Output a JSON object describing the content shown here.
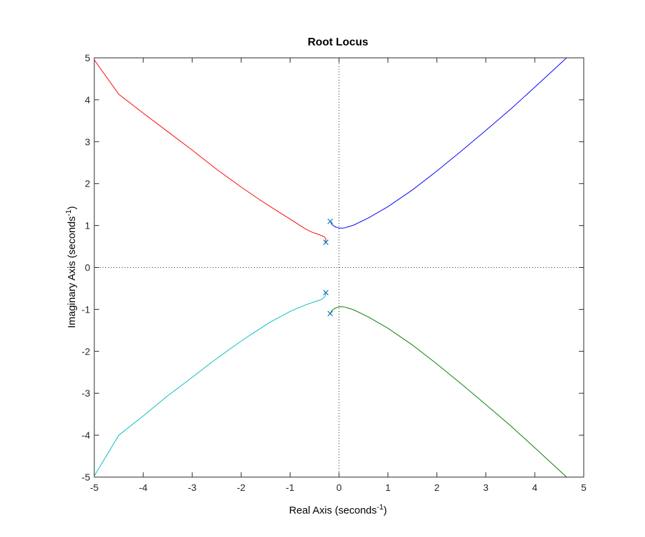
{
  "chart_data": {
    "type": "line",
    "title": "Root Locus",
    "xlabel": {
      "text": "Real Axis (seconds",
      "sup": "-1",
      "suffix": ")"
    },
    "ylabel": {
      "text": "Imaginary Axis (seconds",
      "sup": "-1",
      "suffix": ")"
    },
    "xlim": [
      -5,
      5
    ],
    "ylim": [
      -5,
      5
    ],
    "xticks": [
      -5,
      -4,
      -3,
      -2,
      -1,
      0,
      1,
      2,
      3,
      4,
      5
    ],
    "yticks": [
      -5,
      -4,
      -3,
      -2,
      -1,
      0,
      1,
      2,
      3,
      4,
      5
    ],
    "grid": false,
    "zero_lines": "dotted",
    "series": [
      {
        "color": "#ff0000",
        "points": [
          [
            -0.27,
            0.6
          ],
          [
            -0.27,
            0.68
          ],
          [
            -0.3,
            0.73
          ],
          [
            -0.4,
            0.78
          ],
          [
            -0.55,
            0.84
          ],
          [
            -0.7,
            0.93
          ],
          [
            -0.9,
            1.08
          ],
          [
            -1.2,
            1.3
          ],
          [
            -1.6,
            1.6
          ],
          [
            -2.0,
            1.92
          ],
          [
            -2.5,
            2.34
          ],
          [
            -3.0,
            2.8
          ],
          [
            -3.5,
            3.24
          ],
          [
            -4.0,
            3.68
          ],
          [
            -4.5,
            4.13
          ],
          [
            -5.0,
            4.95
          ]
        ]
      },
      {
        "color": "#0000ff",
        "points": [
          [
            -0.18,
            1.1
          ],
          [
            -0.14,
            1.02
          ],
          [
            -0.08,
            0.97
          ],
          [
            0.0,
            0.94
          ],
          [
            0.1,
            0.94
          ],
          [
            0.3,
            1.01
          ],
          [
            0.6,
            1.18
          ],
          [
            1.0,
            1.45
          ],
          [
            1.5,
            1.85
          ],
          [
            2.0,
            2.3
          ],
          [
            2.5,
            2.78
          ],
          [
            3.0,
            3.27
          ],
          [
            3.5,
            3.77
          ],
          [
            4.0,
            4.3
          ],
          [
            4.65,
            5.0
          ]
        ]
      },
      {
        "color": "#00bfbf",
        "points": [
          [
            -0.27,
            -0.6
          ],
          [
            -0.28,
            -0.68
          ],
          [
            -0.35,
            -0.76
          ],
          [
            -0.5,
            -0.82
          ],
          [
            -0.7,
            -0.9
          ],
          [
            -1.0,
            -1.05
          ],
          [
            -1.4,
            -1.3
          ],
          [
            -1.8,
            -1.6
          ],
          [
            -2.2,
            -1.92
          ],
          [
            -2.6,
            -2.26
          ],
          [
            -3.0,
            -2.62
          ],
          [
            -3.5,
            -3.06
          ],
          [
            -4.0,
            -3.54
          ],
          [
            -4.5,
            -4.0
          ],
          [
            -5.0,
            -4.97
          ]
        ]
      },
      {
        "color": "#008000",
        "points": [
          [
            -0.18,
            -1.1
          ],
          [
            -0.14,
            -1.02
          ],
          [
            -0.08,
            -0.97
          ],
          [
            0.0,
            -0.94
          ],
          [
            0.1,
            -0.94
          ],
          [
            0.3,
            -1.01
          ],
          [
            0.6,
            -1.18
          ],
          [
            1.0,
            -1.45
          ],
          [
            1.5,
            -1.85
          ],
          [
            2.0,
            -2.3
          ],
          [
            2.5,
            -2.78
          ],
          [
            3.0,
            -3.27
          ],
          [
            3.5,
            -3.77
          ],
          [
            4.0,
            -4.3
          ],
          [
            4.65,
            -5.0
          ]
        ]
      }
    ],
    "poles": [
      [
        -0.18,
        1.1
      ],
      [
        -0.27,
        0.6
      ],
      [
        -0.27,
        -0.6
      ],
      [
        -0.18,
        -1.1
      ]
    ],
    "pole_color": "#0072bd"
  }
}
